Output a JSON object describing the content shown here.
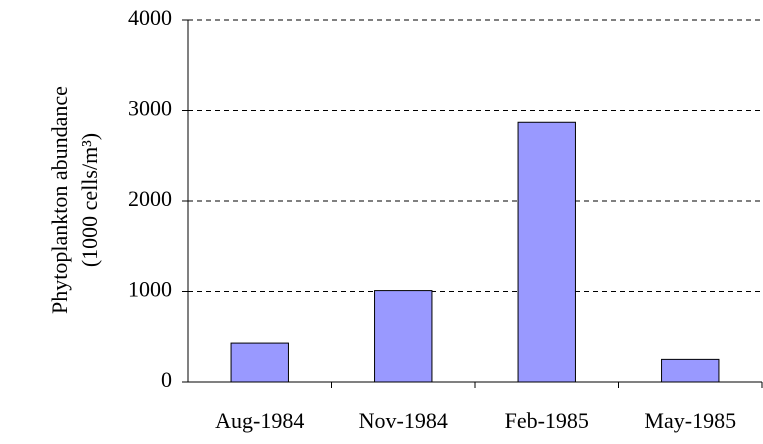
{
  "chart_data": {
    "type": "bar",
    "y_label": [
      "Phytoplankton abundance",
      "(1000 cells/m³)"
    ],
    "categories": [
      "Aug-1984",
      "Nov-1984",
      "Feb-1985",
      "May-1985"
    ],
    "values": [
      430,
      1010,
      2870,
      250
    ],
    "color": "#9999ff",
    "ylim": [
      0,
      4000
    ],
    "yticks": [
      0,
      1000,
      2000,
      3000,
      4000
    ],
    "grid": true
  }
}
